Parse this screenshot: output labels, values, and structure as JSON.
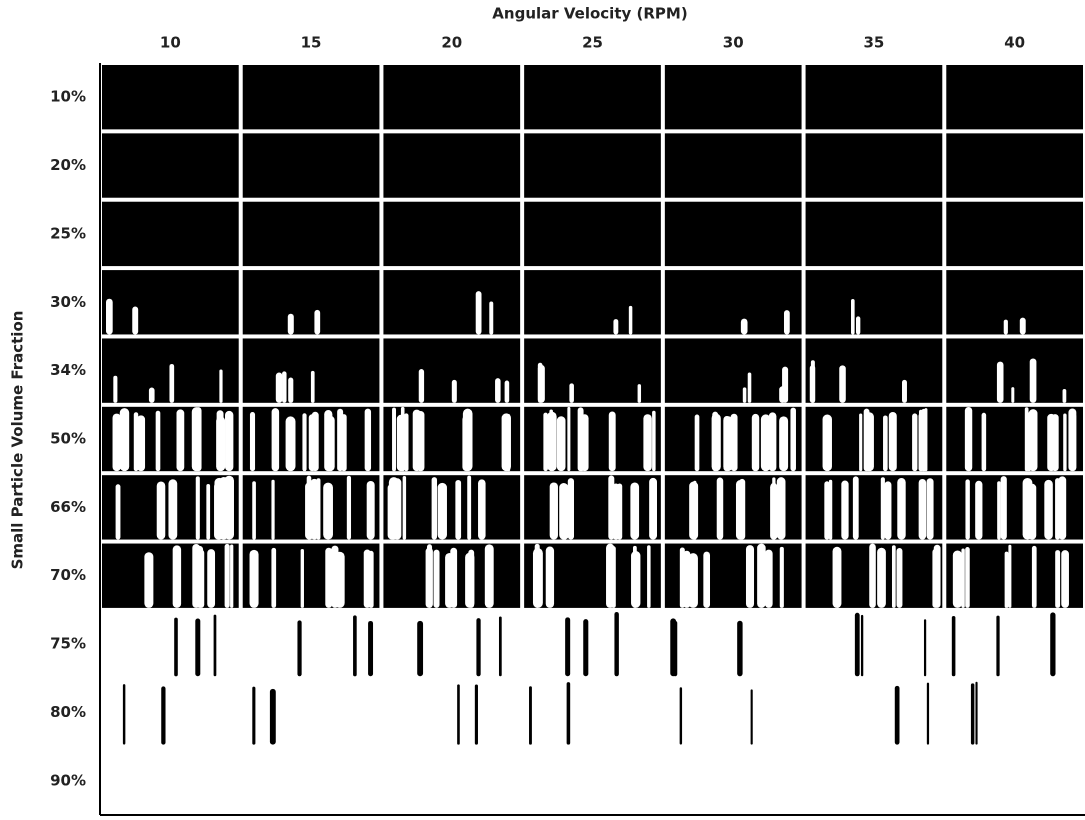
{
  "figure": {
    "x_title": "Angular Velocity (RPM)",
    "y_title": "Small Particle Volume Fraction",
    "columns": [
      "10",
      "15",
      "20",
      "25",
      "30",
      "35",
      "40"
    ],
    "rows": [
      "10%",
      "20%",
      "25%",
      "30%",
      "34%",
      "50%",
      "66%",
      "70%",
      "75%",
      "80%",
      "90%"
    ]
  }
}
